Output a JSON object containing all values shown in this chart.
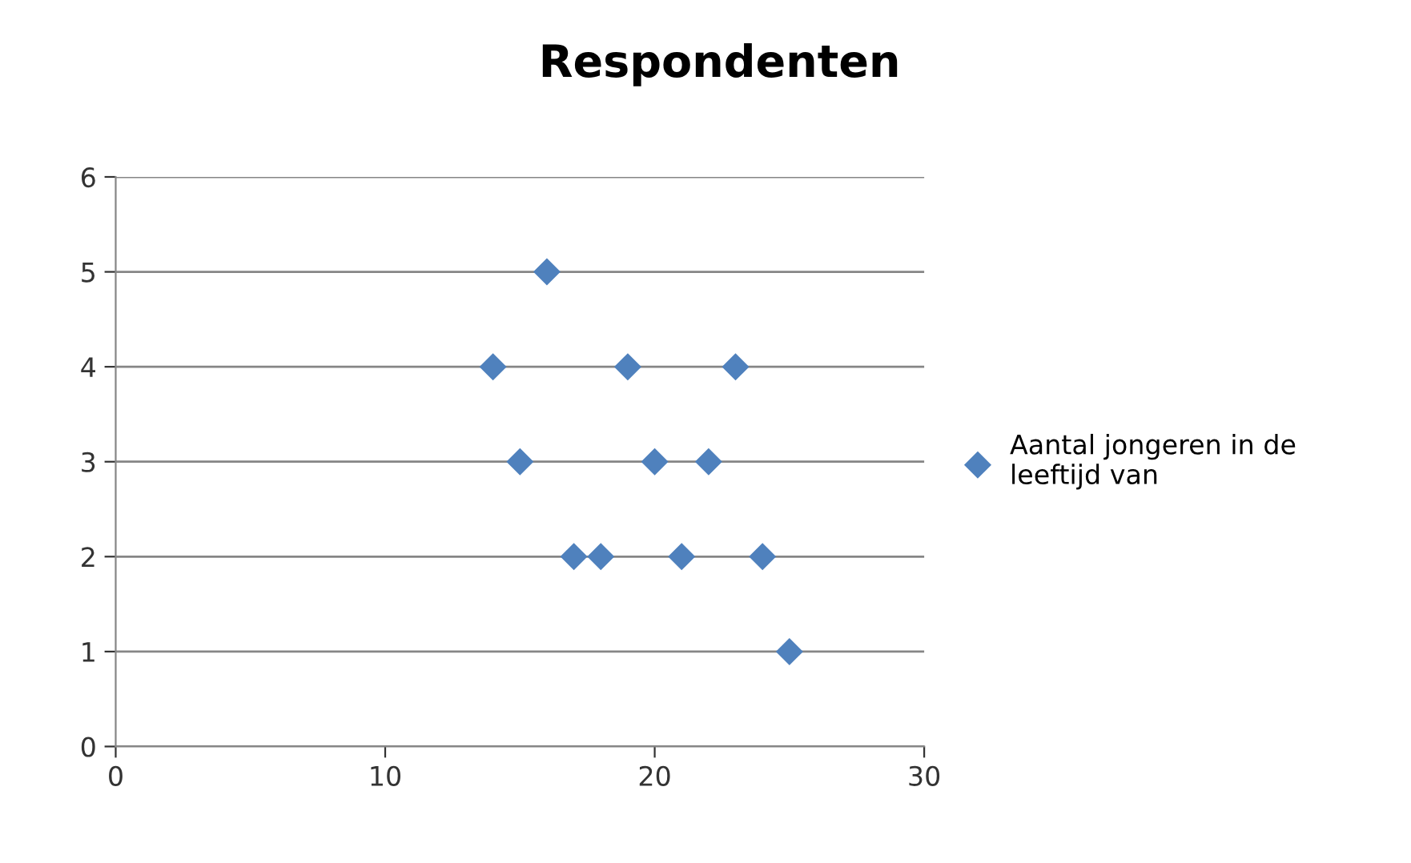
{
  "chart_data": {
    "type": "scatter",
    "title": "Respondenten",
    "x": [
      14,
      15,
      16,
      17,
      18,
      19,
      20,
      21,
      22,
      23,
      24,
      25
    ],
    "series": [
      {
        "name": "Aantal jongeren in de leeftijd van",
        "color": "#4f81bd",
        "values": [
          4,
          3,
          5,
          2,
          2,
          4,
          3,
          2,
          3,
          4,
          2,
          1
        ]
      }
    ],
    "xlim": [
      0,
      30
    ],
    "xticks": [
      0,
      10,
      20,
      30
    ],
    "ylim": [
      0,
      6
    ],
    "yticks": [
      0,
      1,
      2,
      3,
      4,
      5,
      6
    ],
    "grid": "y",
    "legend": "right",
    "marker": "diamond"
  }
}
